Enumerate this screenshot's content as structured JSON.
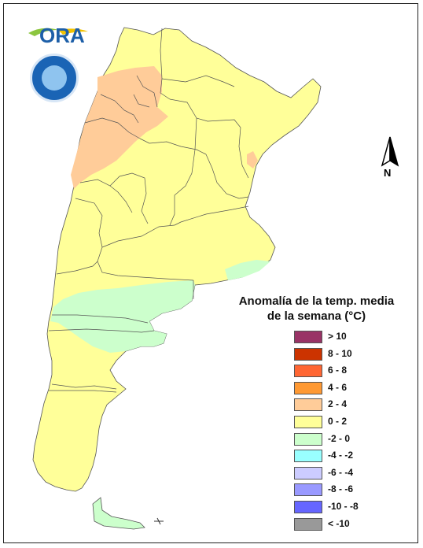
{
  "map": {
    "legend": {
      "title_line1": "Anomalía de la temp. media",
      "title_line2": "de la semana (°C)",
      "items": [
        {
          "label": "> 10",
          "color": "#993366"
        },
        {
          "label": "8 - 10",
          "color": "#cc3300"
        },
        {
          "label": "6 - 8",
          "color": "#ff6633"
        },
        {
          "label": "4 - 6",
          "color": "#ff9933"
        },
        {
          "label": "2 - 4",
          "color": "#ffcc99"
        },
        {
          "label": "0 - 2",
          "color": "#ffff99"
        },
        {
          "label": "-2 - 0",
          "color": "#ccffcc"
        },
        {
          "label": "-4 - -2",
          "color": "#99ffff"
        },
        {
          "label": "-6 - -4",
          "color": "#ccccff"
        },
        {
          "label": "-8 - -6",
          "color": "#9999ff"
        },
        {
          "label": "-10 - -8",
          "color": "#6666ff"
        },
        {
          "label": "< -10",
          "color": "#999999"
        }
      ]
    },
    "north_label": "N",
    "logo_text": "ORA"
  }
}
